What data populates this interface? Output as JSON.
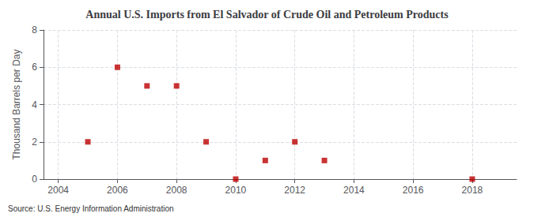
{
  "chart_data": {
    "type": "scatter",
    "title": "Annual U.S. Imports from El Salvador of Crude Oil and Petroleum Products",
    "ylabel": "Thousand Barrels per Day",
    "annotation": "Source: U.S. Energy Information Administration",
    "x": [
      2005,
      2006,
      2007,
      2008,
      2009,
      2010,
      2011,
      2012,
      2013,
      2018
    ],
    "values": [
      2,
      6,
      5,
      5,
      2,
      0,
      1,
      2,
      1,
      0
    ],
    "color": "#bb0000",
    "marker": "square",
    "xlim": [
      2003.5,
      2019.5
    ],
    "xticks": [
      2004,
      2006,
      2008,
      2010,
      2012,
      2014,
      2016,
      2018
    ],
    "ylim": [
      0,
      8
    ],
    "yticks": [
      0,
      2,
      4,
      6,
      8
    ],
    "grid": true
  }
}
